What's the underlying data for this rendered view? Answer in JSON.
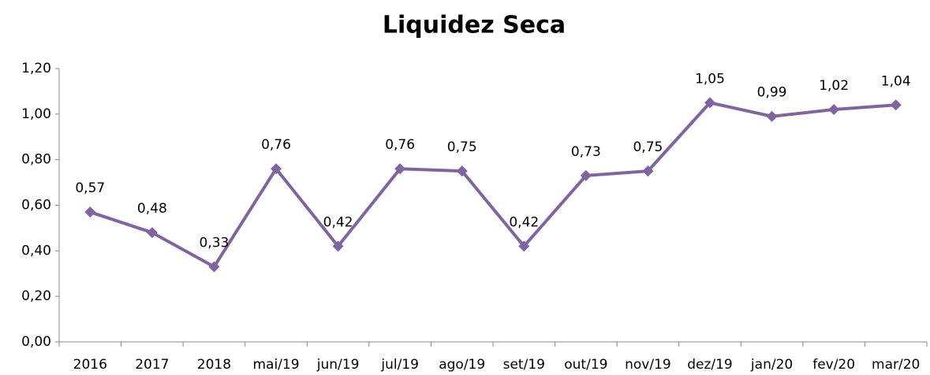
{
  "chart_data": {
    "type": "line",
    "title": "Liquidez Seca",
    "categories": [
      "2016",
      "2017",
      "2018",
      "mai/19",
      "jun/19",
      "jul/19",
      "ago/19",
      "set/19",
      "out/19",
      "nov/19",
      "dez/19",
      "jan/20",
      "fev/20",
      "mar/20"
    ],
    "values": [
      0.57,
      0.48,
      0.33,
      0.76,
      0.42,
      0.76,
      0.75,
      0.42,
      0.73,
      0.75,
      1.05,
      0.99,
      1.02,
      1.04
    ],
    "value_labels": [
      "0,57",
      "0,48",
      "0,33",
      "0,76",
      "0,42",
      "0,76",
      "0,75",
      "0,42",
      "0,73",
      "0,75",
      "1,05",
      "0,99",
      "1,02",
      "1,04"
    ],
    "color": "#8064a2",
    "ylim": [
      0,
      1.2
    ],
    "yticks": [
      {
        "value": 0,
        "label": "0,00"
      },
      {
        "value": 0.2,
        "label": "0,20"
      },
      {
        "value": 0.4,
        "label": "0,40"
      },
      {
        "value": 0.6,
        "label": "0,60"
      },
      {
        "value": 0.8,
        "label": "0,80"
      },
      {
        "value": 1.0,
        "label": "1,00"
      },
      {
        "value": 1.2,
        "label": "1,20"
      }
    ],
    "grid": false
  }
}
